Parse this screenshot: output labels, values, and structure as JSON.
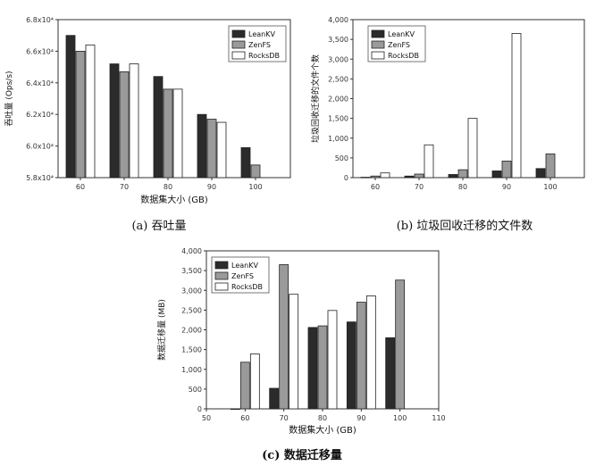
{
  "colors": {
    "LeanKV": "#2b2b2b",
    "ZenFS": "#9a9a9a",
    "RocksDB": "#ffffff"
  },
  "captions": {
    "a": "(a) 吞吐量",
    "b": "(b) 垃圾回收迁移的文件数",
    "c": "(c) 数据迁移量"
  },
  "chart_data": [
    {
      "id": "a",
      "type": "bar",
      "xlabel": "数据集大小 (GB)",
      "ylabel": "吞吐量 (Ops/s)",
      "categories": [
        "60",
        "70",
        "80",
        "90",
        "100"
      ],
      "ylim": [
        58000,
        68000
      ],
      "yticks": [
        {
          "value": 58000,
          "label": "5.8x10⁴"
        },
        {
          "value": 60000,
          "label": "6.0x10⁴"
        },
        {
          "value": 62000,
          "label": "6.2x10⁴"
        },
        {
          "value": 64000,
          "label": "6.4x10⁴"
        },
        {
          "value": 66000,
          "label": "6.6x10⁴"
        },
        {
          "value": 68000,
          "label": "6.8x10⁴"
        }
      ],
      "series": [
        {
          "name": "LeanKV",
          "values": [
            67000,
            65200,
            64400,
            62000,
            59900
          ]
        },
        {
          "name": "ZenFS",
          "values": [
            66000,
            64700,
            63600,
            61700,
            58800
          ]
        },
        {
          "name": "RocksDB",
          "values": [
            66400,
            65200,
            63600,
            61500,
            null
          ]
        }
      ],
      "legend": "top-right",
      "grid": false
    },
    {
      "id": "b",
      "type": "bar",
      "xlabel": "",
      "ylabel": "垃圾回收迁移的文件个数",
      "categories": [
        "60",
        "70",
        "80",
        "90",
        "100"
      ],
      "ylim": [
        0,
        4000
      ],
      "yticks": [
        {
          "value": 0,
          "label": "0"
        },
        {
          "value": 500,
          "label": "500"
        },
        {
          "value": 1000,
          "label": "1,000"
        },
        {
          "value": 1500,
          "label": "1,500"
        },
        {
          "value": 2000,
          "label": "2,000"
        },
        {
          "value": 2500,
          "label": "2,500"
        },
        {
          "value": 3000,
          "label": "3,000"
        },
        {
          "value": 3500,
          "label": "3,500"
        },
        {
          "value": 4000,
          "label": "4,000"
        }
      ],
      "series": [
        {
          "name": "LeanKV",
          "values": [
            10,
            40,
            80,
            170,
            230
          ]
        },
        {
          "name": "ZenFS",
          "values": [
            40,
            90,
            200,
            420,
            600
          ]
        },
        {
          "name": "RocksDB",
          "values": [
            120,
            830,
            1500,
            3650,
            null
          ]
        }
      ],
      "legend": "top-right",
      "grid": false
    },
    {
      "id": "c",
      "type": "bar",
      "xlabel": "数据集大小 (GB)",
      "ylabel": "数据迁移量 (MB)",
      "categories": [
        "60",
        "70",
        "80",
        "90",
        "100"
      ],
      "xticks": [
        "50",
        "60",
        "70",
        "80",
        "90",
        "100",
        "110"
      ],
      "ylim": [
        0,
        4000
      ],
      "yticks": [
        {
          "value": 0,
          "label": "0"
        },
        {
          "value": 500,
          "label": "500"
        },
        {
          "value": 1000,
          "label": "1,000"
        },
        {
          "value": 1500,
          "label": "1,500"
        },
        {
          "value": 2000,
          "label": "2,000"
        },
        {
          "value": 2500,
          "label": "2,500"
        },
        {
          "value": 3000,
          "label": "3,000"
        },
        {
          "value": 3500,
          "label": "3,500"
        },
        {
          "value": 4000,
          "label": "4,000"
        }
      ],
      "series": [
        {
          "name": "LeanKV",
          "values": [
            0,
            520,
            2060,
            2200,
            1800
          ]
        },
        {
          "name": "ZenFS",
          "values": [
            1180,
            3650,
            2100,
            2700,
            3260
          ]
        },
        {
          "name": "RocksDB",
          "values": [
            1390,
            2900,
            2490,
            2860,
            null
          ]
        }
      ],
      "legend": "top-left",
      "grid": false
    }
  ]
}
